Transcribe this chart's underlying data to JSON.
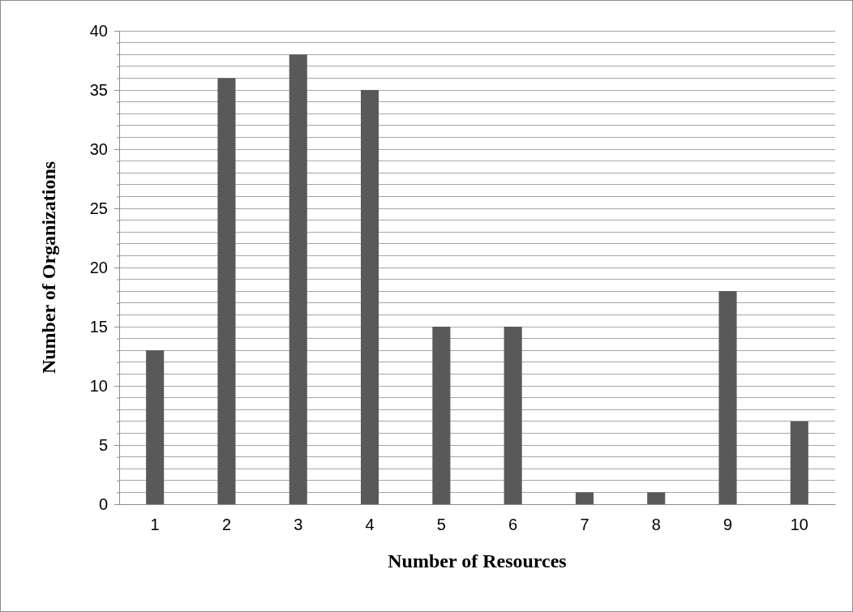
{
  "chart_data": {
    "type": "bar",
    "xlabel": "Number of Resources",
    "ylabel": "Number of Organizations",
    "categories": [
      "1",
      "2",
      "3",
      "4",
      "5",
      "6",
      "7",
      "8",
      "9",
      "10"
    ],
    "values": [
      13,
      36,
      38,
      35,
      15,
      15,
      1,
      1,
      18,
      7
    ],
    "color": "#595959",
    "ylim": [
      0,
      40
    ],
    "yticks": [
      0,
      {
        "value": 1,
        "label": null
      },
      {
        "value": 2,
        "label": null
      },
      {
        "value": 3,
        "label": null
      },
      {
        "value": 4,
        "label": null
      },
      5,
      {
        "value": 6,
        "label": null
      },
      {
        "value": 7,
        "label": null
      },
      {
        "value": 8,
        "label": null
      },
      {
        "value": 9,
        "label": null
      },
      10,
      {
        "value": 11,
        "label": null
      },
      {
        "value": 12,
        "label": null
      },
      {
        "value": 13,
        "label": null
      },
      {
        "value": 14,
        "label": null
      },
      15,
      {
        "value": 16,
        "label": null
      },
      {
        "value": 17,
        "label": null
      },
      {
        "value": 18,
        "label": null
      },
      {
        "value": 19,
        "label": null
      },
      20,
      {
        "value": 21,
        "label": null
      },
      {
        "value": 22,
        "label": null
      },
      {
        "value": 23,
        "label": null
      },
      {
        "value": 24,
        "label": null
      },
      25,
      {
        "value": 26,
        "label": null
      },
      {
        "value": 27,
        "label": null
      },
      {
        "value": 28,
        "label": null
      },
      {
        "value": 29,
        "label": null
      },
      30,
      {
        "value": 31,
        "label": null
      },
      {
        "value": 32,
        "label": null
      },
      {
        "value": 33,
        "label": null
      },
      {
        "value": 34,
        "label": null
      },
      35,
      {
        "value": 36,
        "label": null
      },
      {
        "value": 37,
        "label": null
      },
      {
        "value": 38,
        "label": null
      },
      {
        "value": 39,
        "label": null
      },
      40
    ],
    "grid": "y"
  }
}
